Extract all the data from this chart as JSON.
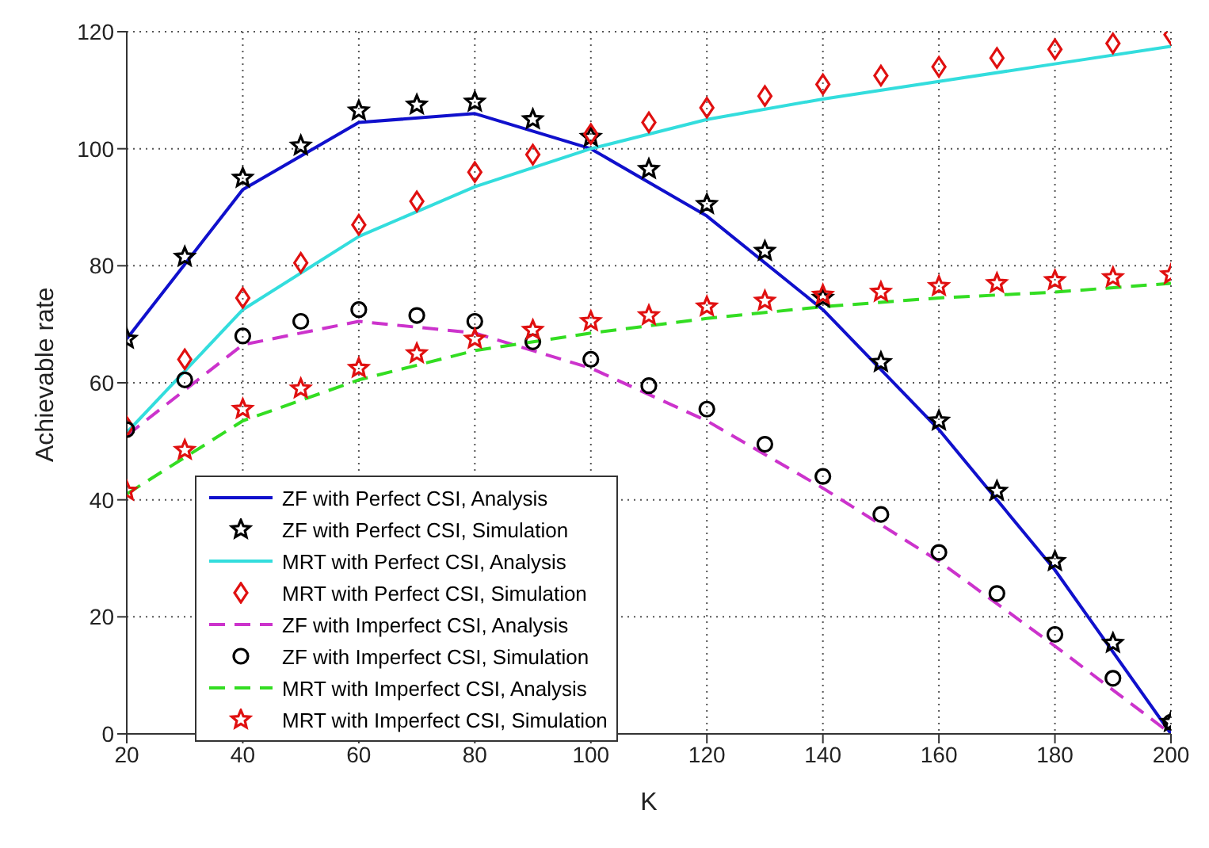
{
  "chart_data": {
    "type": "line",
    "xlabel": "K",
    "ylabel": "Achievable rate",
    "xlim": [
      20,
      200
    ],
    "xticks": [
      20,
      40,
      60,
      80,
      100,
      120,
      140,
      160,
      180,
      200
    ],
    "ylim": [
      0,
      120
    ],
    "yticks": [
      0,
      20,
      40,
      60,
      80,
      100,
      120
    ],
    "grid": true,
    "legend": "bottom left",
    "series": [
      {
        "name": "ZF with Perfect CSI, Analysis",
        "color": "#1010cc",
        "marker": "none",
        "line_style": "solid",
        "x": [
          20,
          40,
          60,
          80,
          100,
          120,
          140,
          160,
          180,
          200
        ],
        "values": [
          67.5,
          93,
          104.5,
          106,
          100,
          88.5,
          72.5,
          52,
          28,
          0
        ]
      },
      {
        "name": "ZF with Perfect CSI, Simulation",
        "type": "scatter",
        "color": "#000000",
        "marker": "star",
        "x": [
          20,
          30,
          40,
          50,
          60,
          70,
          80,
          90,
          100,
          110,
          120,
          130,
          140,
          150,
          160,
          170,
          180,
          190,
          200
        ],
        "values": [
          67.5,
          81.5,
          95,
          100.5,
          106.5,
          107.5,
          108,
          105,
          102,
          96.5,
          90.5,
          82.5,
          74.5,
          63.5,
          53.5,
          41.5,
          29.5,
          15.5,
          2
        ]
      },
      {
        "name": "MRT with Perfect CSI, Analysis",
        "color": "#33dddd",
        "marker": "none",
        "line_style": "solid",
        "x": [
          20,
          40,
          60,
          80,
          100,
          120,
          140,
          160,
          180,
          200
        ],
        "values": [
          51.5,
          72.5,
          85,
          93.5,
          100,
          105,
          108.5,
          111.5,
          114.5,
          117.5
        ]
      },
      {
        "name": "MRT with Perfect CSI, Simulation",
        "type": "scatter",
        "color": "#e01010",
        "marker": "diamond",
        "x": [
          20,
          30,
          40,
          50,
          60,
          70,
          80,
          90,
          100,
          110,
          120,
          130,
          140,
          150,
          160,
          170,
          180,
          190,
          200
        ],
        "values": [
          52.5,
          64,
          74.5,
          80.5,
          87,
          91,
          96,
          99,
          102.5,
          104.5,
          107,
          109,
          111,
          112.5,
          114,
          115.5,
          117,
          118,
          119.5
        ]
      },
      {
        "name": "ZF with Imperfect CSI, Analysis",
        "color": "#cc33cc",
        "marker": "none",
        "line_style": "dashed",
        "x": [
          20,
          40,
          60,
          80,
          100,
          120,
          140,
          160,
          180,
          200
        ],
        "values": [
          51,
          66.5,
          70.5,
          68.5,
          62.5,
          53.5,
          42,
          29.5,
          15,
          0
        ]
      },
      {
        "name": "ZF with Imperfect CSI, Simulation",
        "type": "scatter",
        "color": "#000000",
        "marker": "circle",
        "x": [
          20,
          30,
          40,
          50,
          60,
          70,
          80,
          90,
          100,
          110,
          120,
          130,
          140,
          150,
          160,
          170,
          180,
          190,
          200
        ],
        "values": [
          52,
          60.5,
          68,
          70.5,
          72.5,
          71.5,
          70.5,
          67,
          64,
          59.5,
          55.5,
          49.5,
          44,
          37.5,
          31,
          24,
          17,
          9.5,
          2
        ]
      },
      {
        "name": "MRT with Imperfect CSI, Analysis",
        "color": "#33dd22",
        "marker": "none",
        "line_style": "dashed",
        "x": [
          20,
          40,
          60,
          80,
          100,
          120,
          140,
          160,
          180,
          200
        ],
        "values": [
          41,
          53.5,
          60.5,
          65.5,
          68.5,
          71,
          73,
          74.5,
          75.5,
          77
        ]
      },
      {
        "name": "MRT with Imperfect CSI, Simulation",
        "type": "scatter",
        "color": "#e01010",
        "marker": "star",
        "x": [
          20,
          30,
          40,
          50,
          60,
          70,
          80,
          90,
          100,
          110,
          120,
          130,
          140,
          150,
          160,
          170,
          180,
          190,
          200
        ],
        "values": [
          41.5,
          48.5,
          55.5,
          59,
          62.5,
          65,
          67.5,
          69,
          70.5,
          71.5,
          73,
          74,
          75,
          75.5,
          76.5,
          77,
          77.5,
          78,
          78.5
        ]
      }
    ]
  }
}
